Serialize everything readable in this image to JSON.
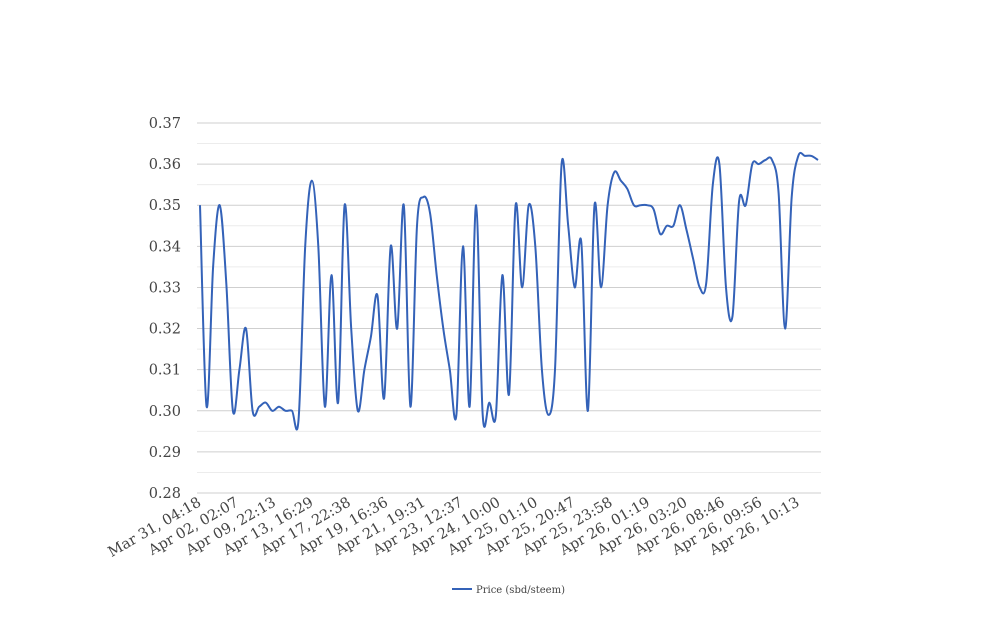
{
  "chart_data": {
    "type": "line",
    "title": "",
    "xlabel": "",
    "ylabel": "",
    "ylim": [
      0.28,
      0.37
    ],
    "y_ticks": [
      "0.28",
      "0.29",
      "0.30",
      "0.31",
      "0.32",
      "0.33",
      "0.34",
      "0.35",
      "0.36",
      "0.37"
    ],
    "grid": true,
    "legend_position": "bottom-center",
    "x_tick_labels": [
      "Mar 31, 04:18",
      "Apr 02, 02:07",
      "Apr 09, 22:13",
      "Apr 13, 16:29",
      "Apr 17, 22:38",
      "Apr 19, 16:36",
      "Apr 21, 19:31",
      "Apr 23, 12:37",
      "Apr 24, 10:00",
      "Apr 25, 01:10",
      "Apr 25, 20:47",
      "Apr 25, 23:58",
      "Apr 26, 01:19",
      "Apr 26, 03:20",
      "Apr 26, 08:46",
      "Apr 26, 09:56",
      "Apr 26, 10:13"
    ],
    "series": [
      {
        "name": "Price (sbd/steem)",
        "color": "#3462b8",
        "values": [
          0.35,
          0.301,
          0.335,
          0.35,
          0.331,
          0.3,
          0.31,
          0.32,
          0.3,
          0.301,
          0.302,
          0.3,
          0.301,
          0.3,
          0.3,
          0.298,
          0.34,
          0.356,
          0.34,
          0.301,
          0.333,
          0.302,
          0.35,
          0.32,
          0.3,
          0.31,
          0.318,
          0.328,
          0.303,
          0.34,
          0.32,
          0.35,
          0.301,
          0.345,
          0.352,
          0.348,
          0.333,
          0.32,
          0.31,
          0.299,
          0.34,
          0.301,
          0.35,
          0.299,
          0.302,
          0.299,
          0.333,
          0.304,
          0.35,
          0.33,
          0.35,
          0.34,
          0.31,
          0.299,
          0.31,
          0.36,
          0.345,
          0.33,
          0.341,
          0.3,
          0.35,
          0.33,
          0.35,
          0.358,
          0.356,
          0.354,
          0.35,
          0.35,
          0.35,
          0.349,
          0.343,
          0.345,
          0.345,
          0.35,
          0.344,
          0.337,
          0.33,
          0.331,
          0.355,
          0.36,
          0.33,
          0.323,
          0.351,
          0.35,
          0.36,
          0.36,
          0.361,
          0.361,
          0.353,
          0.32,
          0.352,
          0.362,
          0.362,
          0.362,
          0.361
        ]
      }
    ]
  }
}
